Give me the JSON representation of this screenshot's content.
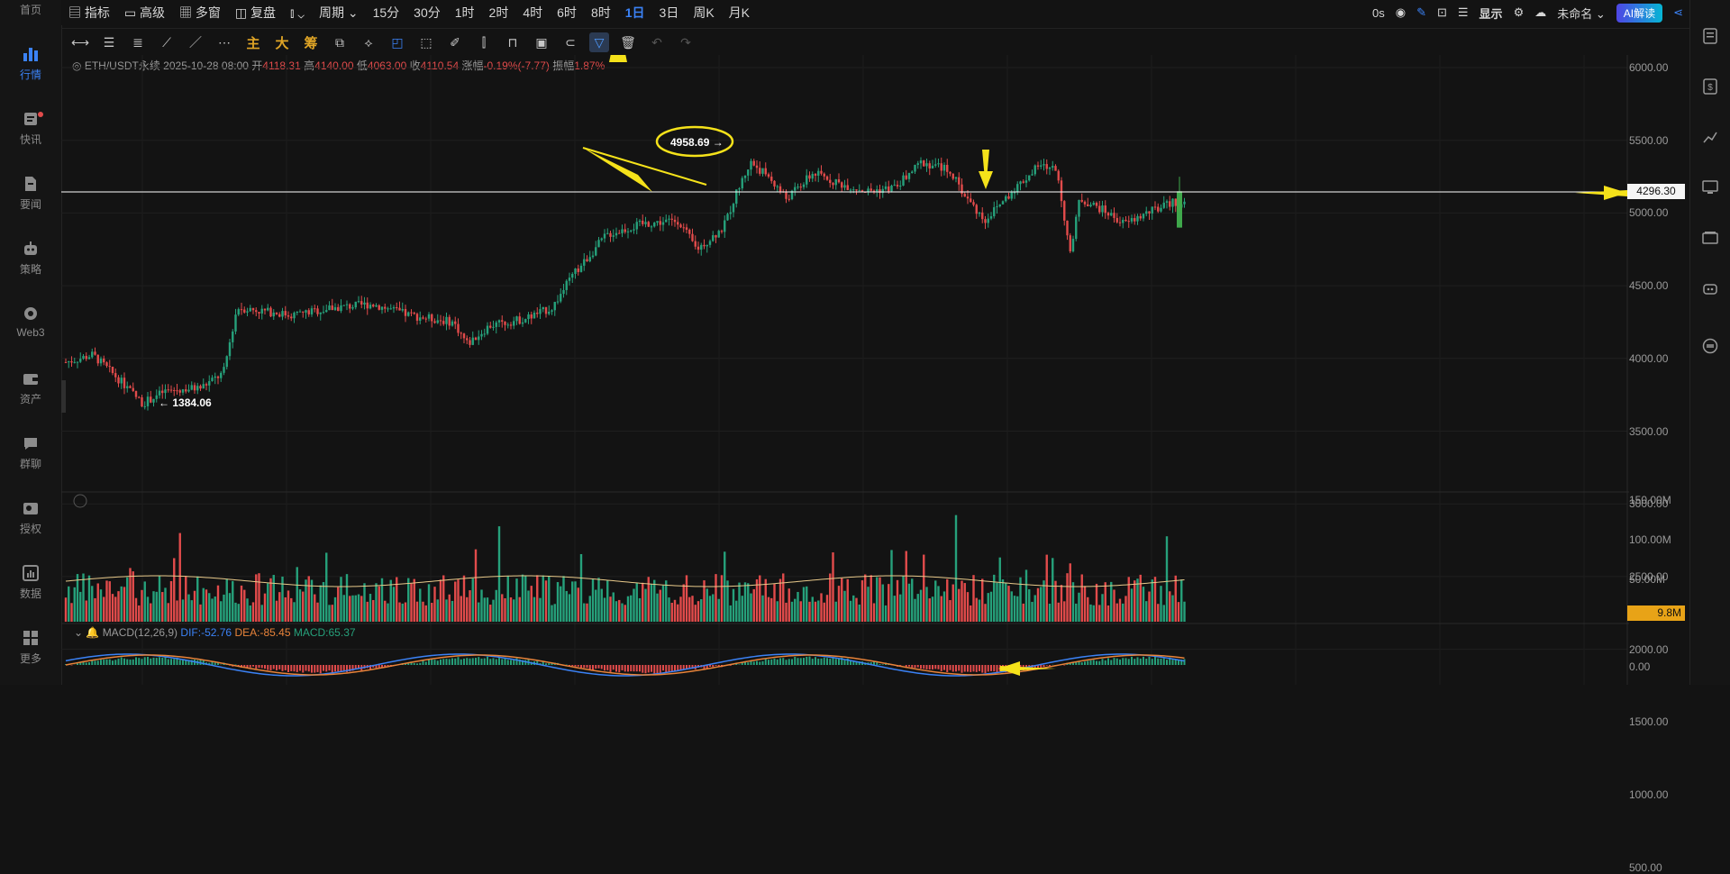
{
  "left_nav": [
    {
      "label": "首页",
      "icon": "home-icon"
    },
    {
      "label": "行情",
      "icon": "bar-chart-icon",
      "active": true
    },
    {
      "label": "快讯",
      "icon": "flash-news-icon",
      "badge": true
    },
    {
      "label": "要闻",
      "icon": "news-icon"
    },
    {
      "label": "策略",
      "icon": "robot-icon"
    },
    {
      "label": "Web3",
      "icon": "globe-icon"
    },
    {
      "label": "资产",
      "icon": "wallet-icon"
    },
    {
      "label": "群聊",
      "icon": "chat-icon"
    },
    {
      "label": "授权",
      "icon": "key-icon"
    },
    {
      "label": "数据",
      "icon": "data-icon"
    },
    {
      "label": "更多",
      "icon": "grid-icon"
    }
  ],
  "top_bar": {
    "indicators": "指标",
    "advanced": "高级",
    "multi_window": "多窗",
    "replay": "复盘",
    "period": "周期",
    "intervals": [
      "15分",
      "30分",
      "1时",
      "2时",
      "4时",
      "6时",
      "8时",
      "1日",
      "3日",
      "周K",
      "月K"
    ],
    "active_interval": "1日",
    "countdown": "0s",
    "display": "显示",
    "layout_name": "未命名",
    "ai_button": "AI解读"
  },
  "toolbar": {
    "cn_tools": [
      "主",
      "大",
      "筹"
    ]
  },
  "info": {
    "symbol": "ETH/USDT永续",
    "datetime": "2025-10-28 08:00",
    "open_label": "开",
    "open": "4118.31",
    "high_label": "高",
    "high": "4140.00",
    "low_label": "低",
    "low": "4063.00",
    "close_label": "收",
    "close": "4110.54",
    "change_label": "涨幅",
    "change": "-0.19%(-7.77)",
    "amp_label": "振幅",
    "amp": "1.87%"
  },
  "price_axis": [
    "6000.00",
    "5500.00",
    "5000.00",
    "4500.00",
    "4000.00",
    "3500.00",
    "3000.00",
    "2500.00",
    "2000.00",
    "1500.00",
    "1000.00",
    "500.00"
  ],
  "current_price": "4296.30",
  "volume_axis": [
    "150.00M",
    "100.00M",
    "50.00M"
  ],
  "current_volume": "9.8M",
  "macd": {
    "title": "MACD(12,26,9)",
    "dif": "DIF:-52.76",
    "dea": "DEA:-85.45",
    "macd": "MACD:65.37",
    "zero": "0.00"
  },
  "annotations": {
    "high_label": "4958.69",
    "low_label": "1384.06"
  },
  "colors": {
    "up": "#26a17b",
    "down": "#e24b4b",
    "accent": "#3b82f6",
    "highlight": "#f5e21a",
    "vol_ma": "#e8c98a"
  }
}
